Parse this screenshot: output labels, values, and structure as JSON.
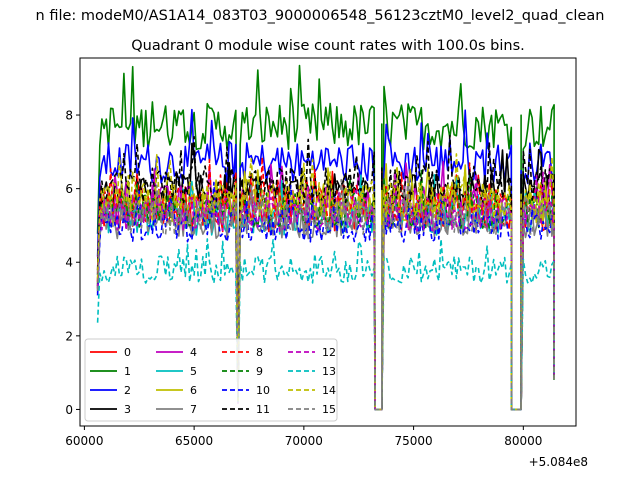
{
  "chart_data": {
    "type": "line",
    "suptitle": "n file: modeM0/AS1A14_083T03_9000006548_56123cztM0_level2_quad_clean",
    "title": "Quadrant 0 module wise count rates with 100.0s bins.",
    "xlabel": "",
    "ylabel": "",
    "x_offset_label": "+5.084e8",
    "xlim": [
      59800,
      82400
    ],
    "ylim": [
      -0.45,
      9.55
    ],
    "x_ticks": [
      60000,
      65000,
      70000,
      75000,
      80000
    ],
    "x_tick_labels": [
      "60000",
      "65000",
      "70000",
      "75000",
      "80000"
    ],
    "y_ticks": [
      0,
      2,
      4,
      6,
      8
    ],
    "y_tick_labels": [
      "0",
      "2",
      "4",
      "6",
      "8"
    ],
    "gaps": [
      [
        73250,
        73550
      ],
      [
        79450,
        79900
      ]
    ],
    "segments": [
      [
        60600,
        73250
      ],
      [
        73550,
        79450
      ],
      [
        79900,
        81400
      ]
    ],
    "legend": {
      "location": "lower-left",
      "columns": 4
    },
    "series": [
      {
        "name": "0",
        "color": "#ff0000",
        "dash": "solid",
        "level": 5.3
      },
      {
        "name": "1",
        "color": "#008000",
        "dash": "solid",
        "level": 7.7
      },
      {
        "name": "2",
        "color": "#0000ff",
        "dash": "solid",
        "level": 6.7
      },
      {
        "name": "3",
        "color": "#000000",
        "dash": "solid",
        "level": 5.9
      },
      {
        "name": "4",
        "color": "#bf00bf",
        "dash": "solid",
        "level": 5.6
      },
      {
        "name": "5",
        "color": "#00bfbf",
        "dash": "solid",
        "level": 5.2
      },
      {
        "name": "6",
        "color": "#bfbf00",
        "dash": "solid",
        "level": 5.5
      },
      {
        "name": "7",
        "color": "#808080",
        "dash": "solid",
        "level": 5.1
      },
      {
        "name": "8",
        "color": "#ff0000",
        "dash": "dashed",
        "level": 5.6
      },
      {
        "name": "9",
        "color": "#008000",
        "dash": "dashed",
        "level": 5.4
      },
      {
        "name": "10",
        "color": "#0000ff",
        "dash": "dashed",
        "level": 5.0
      },
      {
        "name": "11",
        "color": "#000000",
        "dash": "dashed",
        "level": 6.1
      },
      {
        "name": "12",
        "color": "#bf00bf",
        "dash": "dashed",
        "level": 5.3
      },
      {
        "name": "13",
        "color": "#00bfbf",
        "dash": "dashed",
        "level": 3.8
      },
      {
        "name": "14",
        "color": "#bfbf00",
        "dash": "dashed",
        "level": 5.7
      },
      {
        "name": "15",
        "color": "#808080",
        "dash": "dashed",
        "level": 5.2
      }
    ]
  }
}
